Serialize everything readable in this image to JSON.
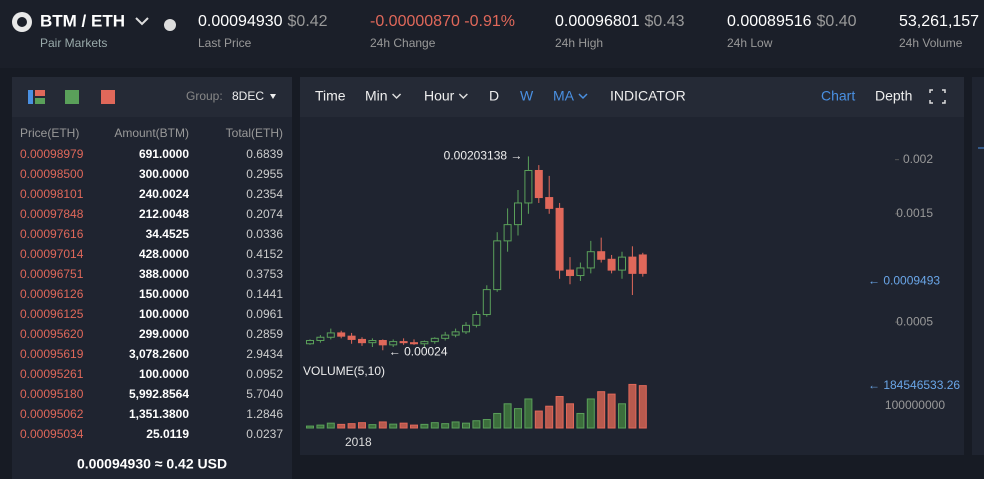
{
  "header": {
    "pair": "BTM / ETH",
    "pair_sub": "Pair Markets",
    "stats": [
      {
        "value": "0.00094930",
        "usd": "$0.42",
        "label": "Last Price"
      },
      {
        "value": "-0.00000870 -0.91%",
        "label": "24h Change"
      },
      {
        "value": "0.00096801",
        "usd": "$0.43",
        "label": "24h High"
      },
      {
        "value": "0.00089516",
        "usd": "$0.40",
        "label": "24h Low"
      },
      {
        "value": "53,261,157",
        "label": "24h Volume"
      }
    ]
  },
  "orderbook": {
    "group_label": "Group:",
    "group": "8DEC",
    "columns": [
      "Price(ETH)",
      "Amount(BTM)",
      "Total(ETH)"
    ],
    "rows": [
      [
        "0.00098979",
        "691.0000",
        "0.6839"
      ],
      [
        "0.00098500",
        "300.0000",
        "0.2955"
      ],
      [
        "0.00098101",
        "240.0024",
        "0.2354"
      ],
      [
        "0.00097848",
        "212.0048",
        "0.2074"
      ],
      [
        "0.00097616",
        "34.4525",
        "0.0336"
      ],
      [
        "0.00097014",
        "428.0000",
        "0.4152"
      ],
      [
        "0.00096751",
        "388.0000",
        "0.3753"
      ],
      [
        "0.00096126",
        "150.0000",
        "0.1441"
      ],
      [
        "0.00096125",
        "100.0000",
        "0.0961"
      ],
      [
        "0.00095620",
        "299.0000",
        "0.2859"
      ],
      [
        "0.00095619",
        "3,078.2600",
        "2.9434"
      ],
      [
        "0.00095261",
        "100.0000",
        "0.0952"
      ],
      [
        "0.00095180",
        "5,992.8564",
        "5.7040"
      ],
      [
        "0.00095062",
        "1,351.3800",
        "1.2846"
      ],
      [
        "0.00095034",
        "25.0119",
        "0.0237"
      ]
    ],
    "footer": "0.00094930 ≈ 0.42 USD"
  },
  "toolbar": {
    "items": [
      "Time",
      "Min",
      "Hour",
      "D",
      "W",
      "MA",
      "INDICATOR"
    ],
    "right": [
      "Chart",
      "Depth"
    ]
  },
  "chart": {
    "type": "candlestick",
    "open": [
      0.0003,
      0.00033,
      0.00036,
      0.0004,
      0.00037,
      0.00034,
      0.00031,
      0.00033,
      0.00029,
      0.00032,
      0.00031,
      0.0003,
      0.00032,
      0.00035,
      0.00038,
      0.00041,
      0.00047,
      0.00057,
      0.0008,
      0.00125,
      0.0014,
      0.0016,
      0.0019,
      0.00165,
      0.00155,
      0.00098,
      0.00093,
      0.001,
      0.00115,
      0.00108,
      0.00098,
      0.0011,
      0.00112
    ],
    "high": [
      0.00034,
      0.00038,
      0.00044,
      0.00042,
      0.0004,
      0.00036,
      0.00035,
      0.00034,
      0.00034,
      0.00035,
      0.00034,
      0.00033,
      0.00036,
      0.00041,
      0.00044,
      0.0005,
      0.0006,
      0.00084,
      0.00133,
      0.00155,
      0.00172,
      0.00203,
      0.00195,
      0.00185,
      0.0016,
      0.0011,
      0.00105,
      0.00125,
      0.00128,
      0.00112,
      0.00115,
      0.0012,
      0.00114
    ],
    "low": [
      0.00029,
      0.00031,
      0.00034,
      0.00035,
      0.0003,
      0.00028,
      0.00027,
      0.00024,
      0.00027,
      0.00029,
      0.00029,
      0.00027,
      0.0003,
      0.00033,
      0.00036,
      0.00039,
      0.00045,
      0.00055,
      0.00078,
      0.00115,
      0.0013,
      0.0015,
      0.0016,
      0.0015,
      0.0009,
      0.00085,
      0.00088,
      0.00095,
      0.00105,
      0.00095,
      0.0009,
      0.00075,
      0.00092
    ],
    "close": [
      0.00033,
      0.00036,
      0.0004,
      0.00037,
      0.00034,
      0.00031,
      0.00033,
      0.00029,
      0.00032,
      0.00031,
      0.0003,
      0.00032,
      0.00035,
      0.00038,
      0.00041,
      0.00047,
      0.00057,
      0.0008,
      0.00125,
      0.0014,
      0.0016,
      0.0019,
      0.00165,
      0.00155,
      0.00098,
      0.00093,
      0.001,
      0.00115,
      0.00108,
      0.00098,
      0.0011,
      0.00095,
      0.00095
    ],
    "volume": [
      8000000,
      12000000,
      20000000,
      15000000,
      18000000,
      22000000,
      14000000,
      25000000,
      16000000,
      20000000,
      12000000,
      15000000,
      22000000,
      18000000,
      25000000,
      20000000,
      30000000,
      35000000,
      60000000,
      100000000,
      80000000,
      120000000,
      70000000,
      90000000,
      130000000,
      100000000,
      60000000,
      120000000,
      150000000,
      140000000,
      100000000,
      180000000,
      175000000
    ],
    "ylim": [
      0.00015,
      0.00232
    ],
    "yticks": [
      0.0005,
      0.0015,
      0.002
    ],
    "vlim": [
      0,
      190000000
    ],
    "high_label": "0.00203138 →",
    "low_label": "← 0.00024",
    "last_label": "← 0.0009493",
    "volume_title": "VOLUME(5,10)",
    "volume_max_label": "← 184546533.26",
    "volume_tick": "100000000",
    "x_label": "2018",
    "up_color": "#5aa05a",
    "down_color": "#e0685a"
  }
}
